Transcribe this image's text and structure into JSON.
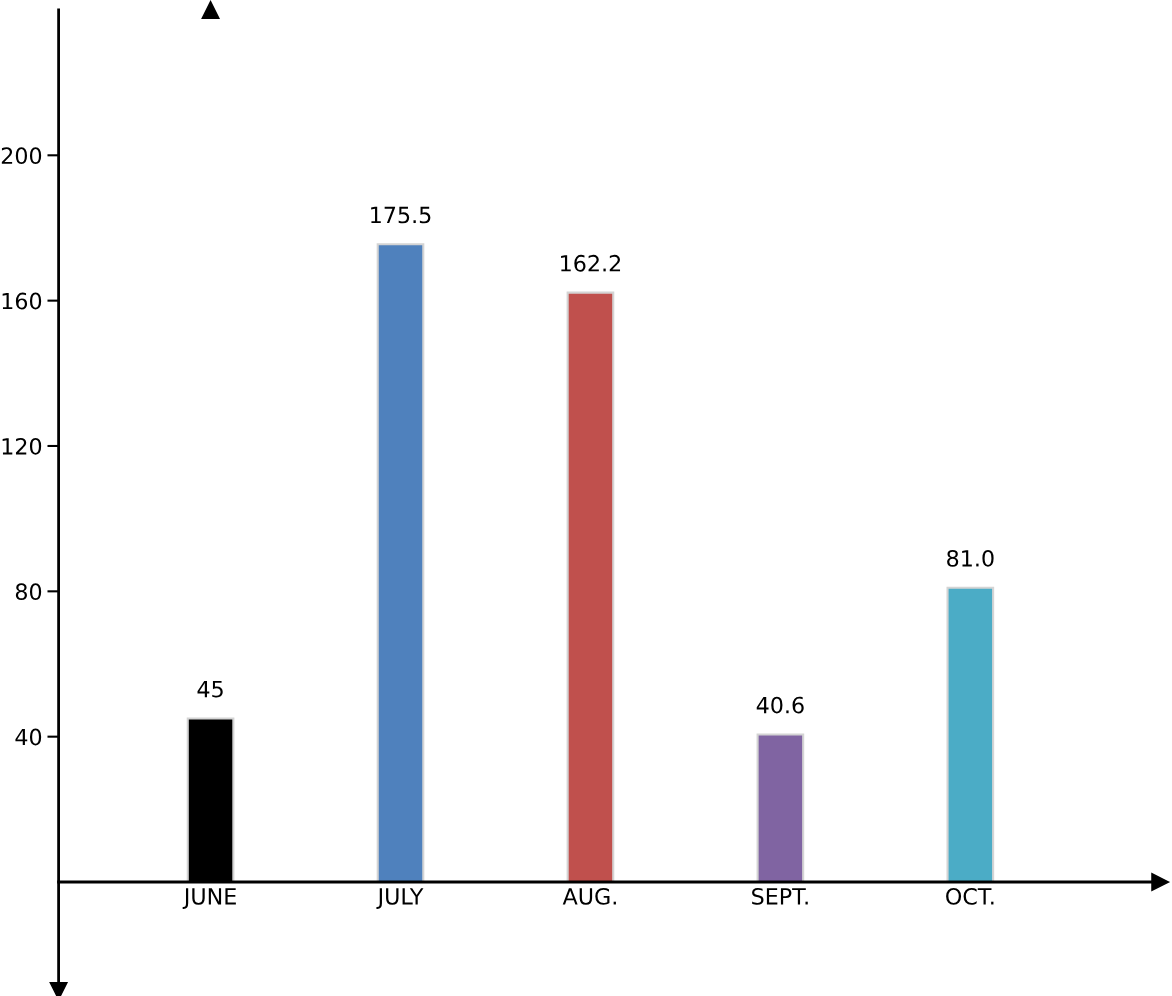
{
  "chart_data": {
    "type": "bar",
    "categories": [
      "JUNE",
      "JULY",
      "AUG.",
      "SEPT.",
      "OCT."
    ],
    "values": [
      45,
      175.5,
      162.2,
      40.6,
      81.0
    ],
    "colors": [
      "#000000",
      "#4f81bd",
      "#c0504d",
      "#8064a2",
      "#4bacc6"
    ],
    "value_labels": [
      "45",
      "175.5",
      "162.2",
      "40.6",
      "81.0"
    ],
    "ylim": [
      -30,
      240
    ],
    "yticks": [
      40,
      80,
      120,
      160,
      200
    ],
    "grid": false,
    "legend": false
  }
}
